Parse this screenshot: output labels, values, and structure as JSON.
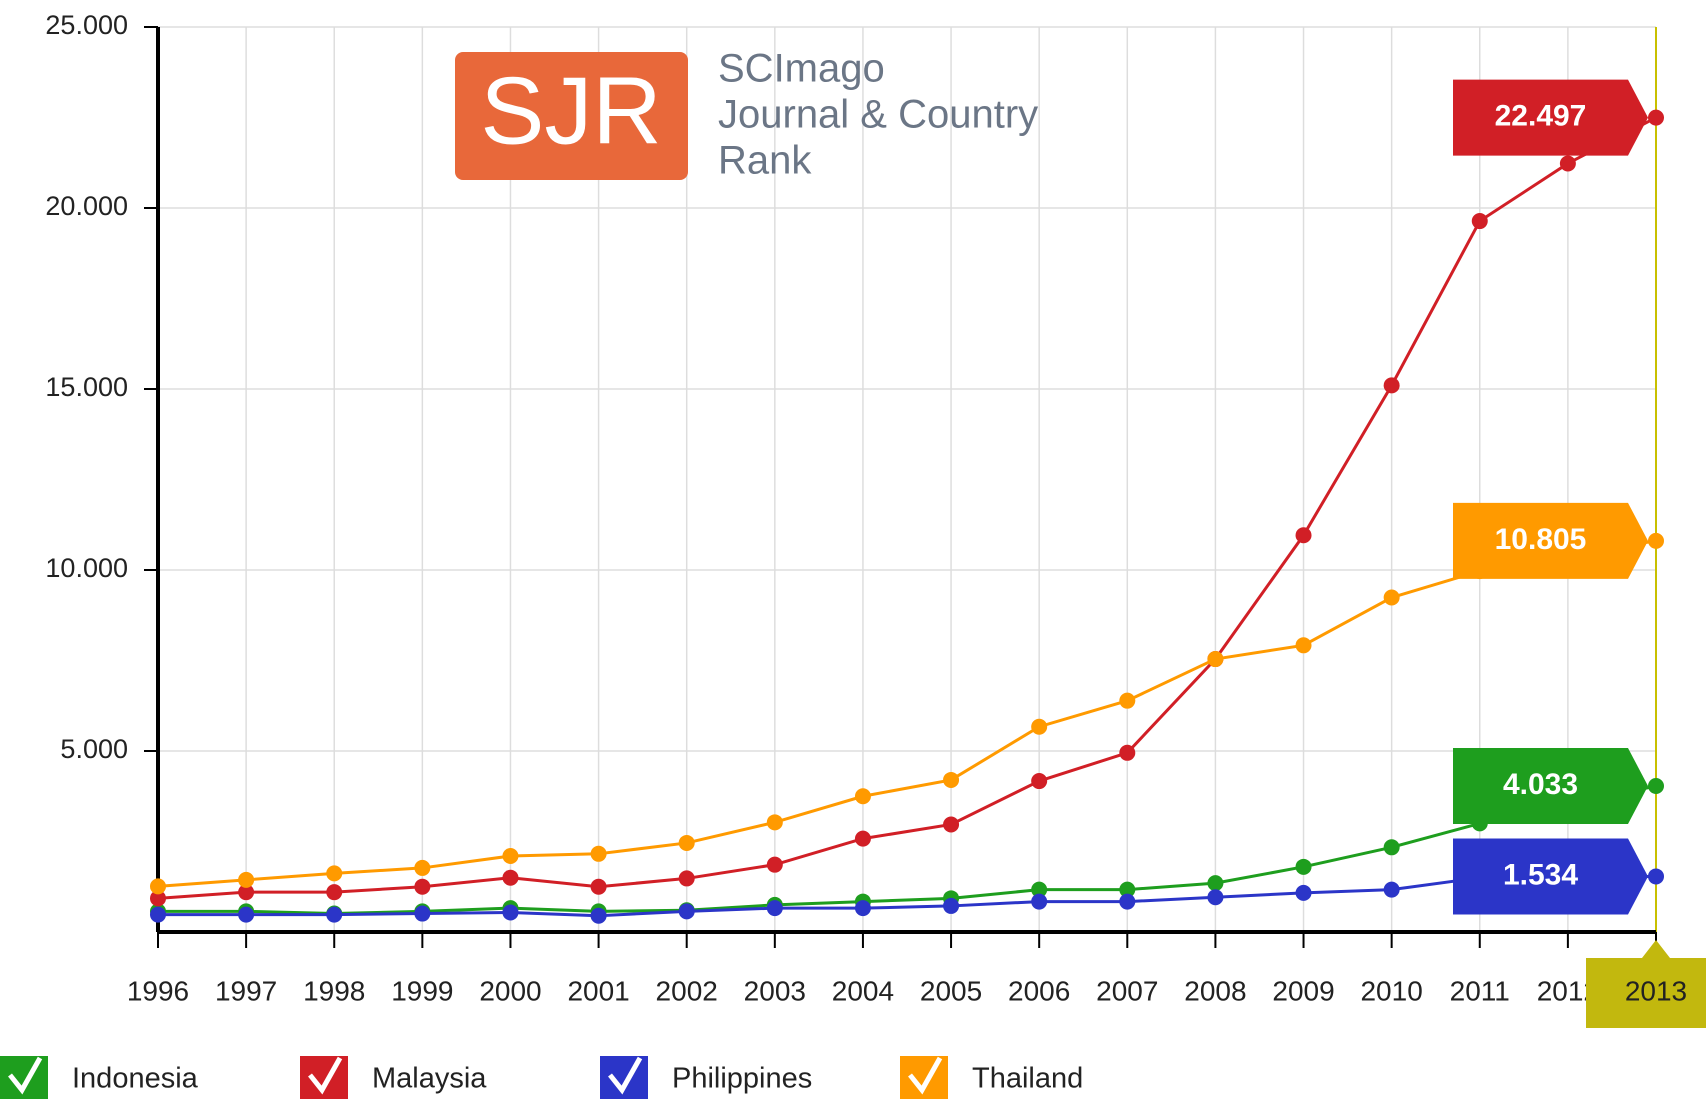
{
  "logo": {
    "badge": "SJR",
    "lines": [
      "SCImago",
      "Journal & Country",
      "Rank"
    ]
  },
  "chart_data": {
    "type": "line",
    "categories": [
      "1996",
      "1997",
      "1998",
      "1999",
      "2000",
      "2001",
      "2002",
      "2003",
      "2004",
      "2005",
      "2006",
      "2007",
      "2008",
      "2009",
      "2010",
      "2011",
      "2012",
      "2013"
    ],
    "highlight_category": 17,
    "ylim": [
      0,
      25000
    ],
    "yticks": [
      {
        "value": 5000,
        "label": "5.000"
      },
      {
        "value": 10000,
        "label": "10.000"
      },
      {
        "value": 15000,
        "label": "15.000"
      },
      {
        "value": 20000,
        "label": "20.000"
      },
      {
        "value": 25000,
        "label": "25.000"
      }
    ],
    "grid": true,
    "legend": "bottom",
    "series": [
      {
        "name": "Indonesia",
        "color": "#1e9e1e",
        "values": [
          570,
          570,
          510,
          570,
          660,
          570,
          600,
          750,
          840,
          930,
          1170,
          1170,
          1350,
          1800,
          2340,
          3000,
          3500,
          4033
        ],
        "value_labels": [
          null,
          null,
          null,
          null,
          null,
          null,
          null,
          null,
          null,
          null,
          null,
          null,
          null,
          null,
          null,
          null,
          null,
          "4.033"
        ]
      },
      {
        "name": "Malaysia",
        "color": "#d11f26",
        "values": [
          930,
          1100,
          1100,
          1250,
          1500,
          1250,
          1480,
          1860,
          2580,
          2970,
          4170,
          4950,
          7540,
          10960,
          15100,
          19640,
          21230,
          22497
        ],
        "value_labels": [
          null,
          null,
          null,
          null,
          null,
          null,
          null,
          null,
          null,
          null,
          null,
          null,
          null,
          null,
          null,
          null,
          null,
          "22.497"
        ]
      },
      {
        "name": "Philippines",
        "color": "#2b35c8",
        "values": [
          480,
          480,
          480,
          510,
          540,
          450,
          570,
          660,
          660,
          720,
          840,
          840,
          960,
          1080,
          1170,
          1500,
          1520,
          1534
        ],
        "value_labels": [
          null,
          null,
          null,
          null,
          null,
          null,
          null,
          null,
          null,
          null,
          null,
          null,
          null,
          null,
          null,
          null,
          null,
          "1.534"
        ]
      },
      {
        "name": "Thailand",
        "color": "#ff9a00",
        "values": [
          1260,
          1440,
          1620,
          1770,
          2100,
          2160,
          2460,
          3030,
          3750,
          4200,
          5670,
          6390,
          7540,
          7920,
          9240,
          9970,
          10400,
          10805
        ],
        "value_labels": [
          null,
          null,
          null,
          null,
          null,
          null,
          null,
          null,
          null,
          null,
          null,
          null,
          null,
          null,
          null,
          null,
          null,
          "10.805"
        ]
      }
    ]
  }
}
